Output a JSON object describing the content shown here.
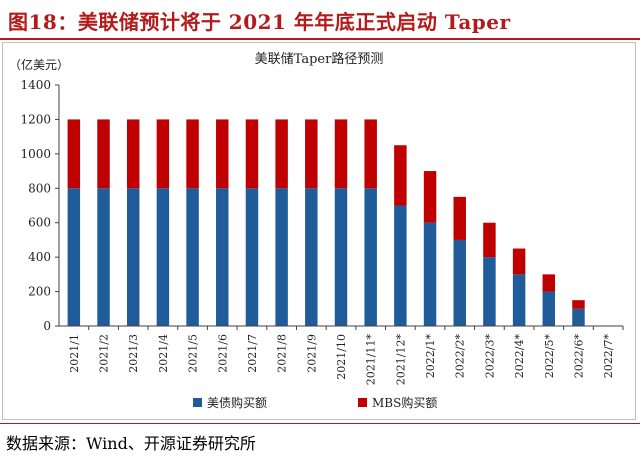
{
  "figure_title": "图18：美联储预计将于 2021 年年底正式启动 Taper",
  "source_note": "数据来源：Wind、开源证券研究所",
  "colors": {
    "treasury": "#1f5c99",
    "mbs": "#c00000",
    "title_red": "#b31b1b",
    "axis": "#404040"
  },
  "chart_data": {
    "type": "bar",
    "stacked": true,
    "title": "美联储Taper路径预测",
    "ylabel": "（亿美元）",
    "xlabel": "",
    "ylim": [
      0,
      1400
    ],
    "yticks": [
      0,
      200,
      400,
      600,
      800,
      1000,
      1200,
      1400
    ],
    "grid": false,
    "legend_position": "bottom",
    "categories": [
      "2021/1",
      "2021/2",
      "2021/3",
      "2021/4",
      "2021/5",
      "2021/6",
      "2021/7",
      "2021/8",
      "2021/9",
      "2021/10",
      "2021/11*",
      "2021/12*",
      "2022/1*",
      "2022/2*",
      "2022/3*",
      "2022/4*",
      "2022/5*",
      "2022/6*",
      "2022/7*"
    ],
    "series": [
      {
        "name": "美债购买额",
        "color": "#1f5c99",
        "values": [
          800,
          800,
          800,
          800,
          800,
          800,
          800,
          800,
          800,
          800,
          800,
          700,
          600,
          500,
          400,
          300,
          200,
          100,
          0
        ]
      },
      {
        "name": "MBS购买额",
        "color": "#c00000",
        "values": [
          400,
          400,
          400,
          400,
          400,
          400,
          400,
          400,
          400,
          400,
          400,
          350,
          300,
          250,
          200,
          150,
          100,
          50,
          0
        ]
      }
    ]
  }
}
